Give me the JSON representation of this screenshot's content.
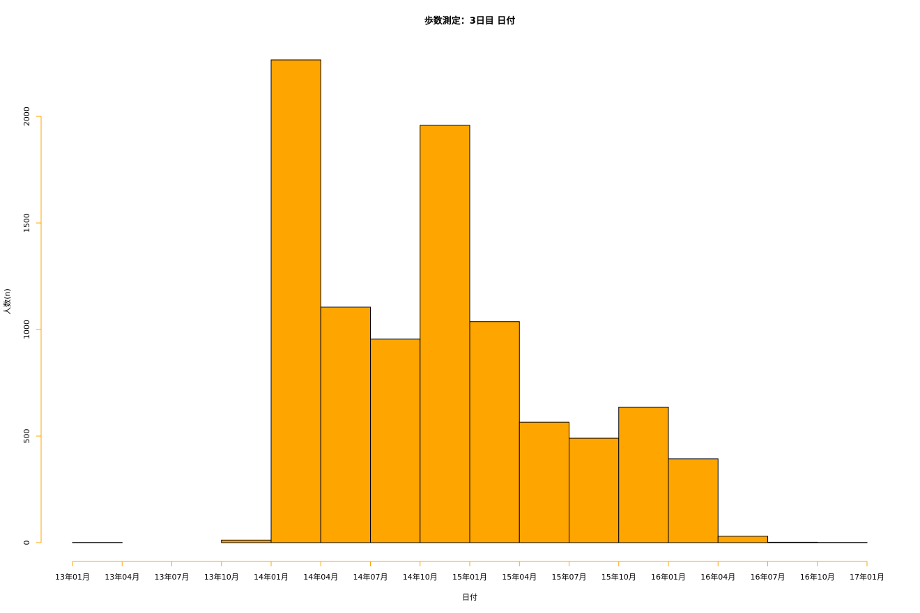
{
  "chart_data": {
    "type": "bar",
    "title": "歩数測定：3日目 日付",
    "xlabel": "日付",
    "ylabel": "人数(n)",
    "x_ticks": [
      "13年01月",
      "13年04月",
      "13年07月",
      "13年10月",
      "14年01月",
      "14年04月",
      "14年07月",
      "14年10月",
      "15年01月",
      "15年04月",
      "15年07月",
      "15年10月",
      "16年01月",
      "16年04月",
      "16年07月",
      "16年10月",
      "17年01月"
    ],
    "bins": [
      {
        "start": "13年01月",
        "end": "13年04月",
        "value": 1
      },
      {
        "start": "13年04月",
        "end": "13年07月",
        "value": 0
      },
      {
        "start": "13年07月",
        "end": "13年10月",
        "value": 0
      },
      {
        "start": "13年10月",
        "end": "14年01月",
        "value": 12
      },
      {
        "start": "14年01月",
        "end": "14年04月",
        "value": 2265
      },
      {
        "start": "14年04月",
        "end": "14年07月",
        "value": 1105
      },
      {
        "start": "14年07月",
        "end": "14年10月",
        "value": 955
      },
      {
        "start": "14年10月",
        "end": "15年01月",
        "value": 1958
      },
      {
        "start": "15年01月",
        "end": "15年04月",
        "value": 1037
      },
      {
        "start": "15年04月",
        "end": "15年07月",
        "value": 565
      },
      {
        "start": "15年07月",
        "end": "15年10月",
        "value": 490
      },
      {
        "start": "15年10月",
        "end": "16年01月",
        "value": 636
      },
      {
        "start": "16年01月",
        "end": "16年04月",
        "value": 393
      },
      {
        "start": "16年04月",
        "end": "16年07月",
        "value": 30
      },
      {
        "start": "16年07月",
        "end": "16年10月",
        "value": 2
      },
      {
        "start": "16年10月",
        "end": "17年01月",
        "value": 1
      }
    ],
    "y_ticks": [
      0,
      500,
      1000,
      1500,
      2000
    ],
    "ylim": [
      0,
      2265
    ],
    "bar_color": "#FFA500",
    "bar_border_color": "#000000",
    "axis_color": "#FFA500",
    "grid": false,
    "legend": "none"
  }
}
